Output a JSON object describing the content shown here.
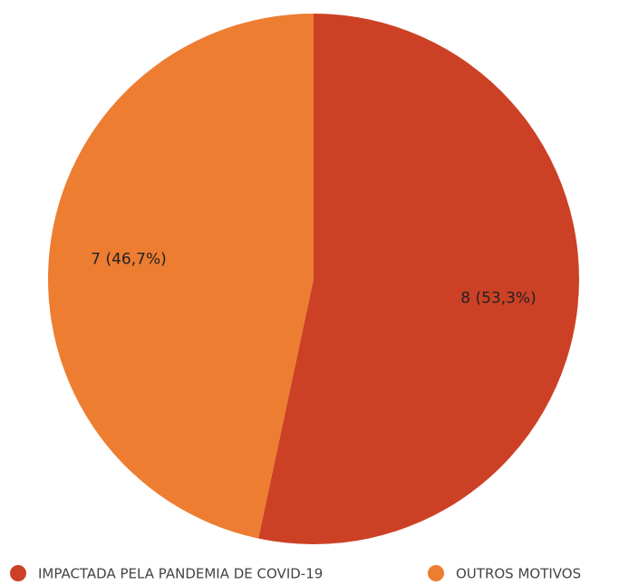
{
  "chart_data": {
    "type": "pie",
    "categories": [
      "IMPACTADA PELA PANDEMIA DE COVID-19",
      "OUTROS MOTIVOS"
    ],
    "values": [
      8,
      7
    ],
    "value_labels": [
      "8 (53,3%)",
      "7 (46,7%)"
    ],
    "colors": [
      "#cc4125",
      "#ed7d31"
    ],
    "legend": "bottom"
  }
}
